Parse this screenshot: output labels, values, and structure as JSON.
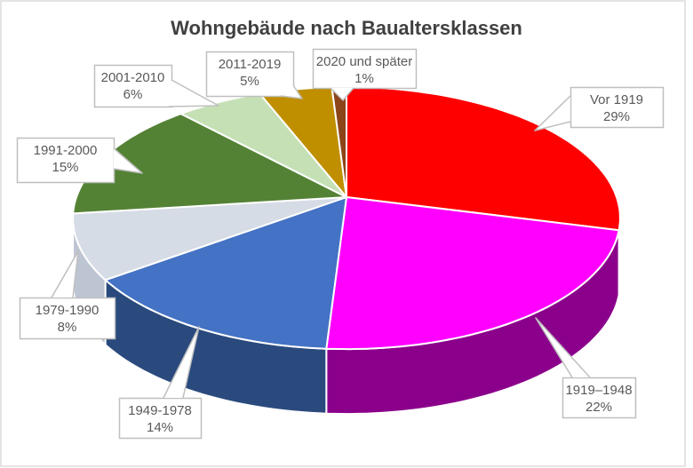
{
  "chart_data": {
    "type": "pie",
    "projection": "3d",
    "title": "Wohngebäude nach Baualtersklassen",
    "legend": "none",
    "grid": false,
    "direction": "clockwise",
    "start_angle_deg": 0,
    "unit": "%",
    "total": 100,
    "label_style": "callout boxes with category name and percent, gray border, white fill",
    "categories": [
      "Vor 1919",
      "1919–1948",
      "1949-1978",
      "1979-1990",
      "1991-2000",
      "2001-2010",
      "2011-2019",
      "2020 und später"
    ],
    "values": [
      29,
      22,
      14,
      8,
      15,
      6,
      5,
      1
    ],
    "slices": [
      {
        "label": "Vor 1919",
        "value": 29,
        "display": "29%",
        "color": "#FF0000",
        "side_color": "#A00000"
      },
      {
        "label": "1919–1948",
        "value": 22,
        "display": "22%",
        "color": "#FF00FF",
        "side_color": "#8B008B"
      },
      {
        "label": "1949-1978",
        "value": 14,
        "display": "14%",
        "color": "#4472C4",
        "side_color": "#2A4A7E"
      },
      {
        "label": "1979-1990",
        "value": 8,
        "display": "8%",
        "color": "#D6DCE5",
        "side_color": "#BDC4D2"
      },
      {
        "label": "1991-2000",
        "value": 15,
        "display": "15%",
        "color": "#548235",
        "side_color": "#375422"
      },
      {
        "label": "2001-2010",
        "value": 6,
        "display": "6%",
        "color": "#C5E0B4",
        "side_color": "#8FA87E"
      },
      {
        "label": "2011-2019",
        "value": 5,
        "display": "5%",
        "color": "#BF8F00",
        "side_color": "#7E5E00"
      },
      {
        "label": "2020 und später",
        "value": 1,
        "display": "1%",
        "color": "#8C4419",
        "side_color": "#5C2C10"
      }
    ]
  },
  "colors": {
    "background": "#FFFFFF",
    "chart_border": "#DCDCDC",
    "title_text": "#404040",
    "label_text": "#595959",
    "callout_border": "#BFBFBF",
    "callout_fill": "#FFFFFF",
    "slice_border": "#FFFFFF"
  }
}
